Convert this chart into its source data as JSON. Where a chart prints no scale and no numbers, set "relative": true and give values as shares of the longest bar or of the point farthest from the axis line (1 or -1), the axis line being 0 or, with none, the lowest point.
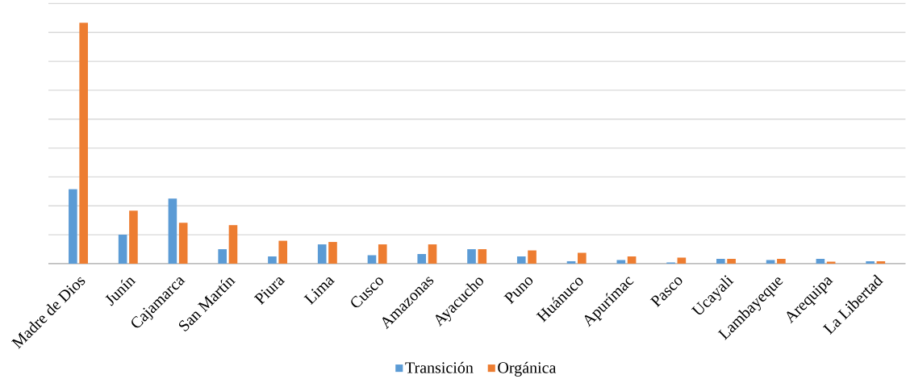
{
  "chart_data": {
    "type": "bar",
    "relative": true,
    "grid": "y",
    "legend": "bottom",
    "categories": [
      "Madre de Dios",
      "Junín",
      "Cajamarca",
      "San Martín",
      "Piura",
      "Lima",
      "Cusco",
      "Amazonas",
      "Ayacucho",
      "Puno",
      "Huánuco",
      "Apurímac",
      "Pasco",
      "Ucayali",
      "Lambayeque",
      "Arequipa",
      "La Libertad"
    ],
    "series": [
      {
        "name": "Transición",
        "color": "#5b9bd5",
        "values": [
          0.31,
          0.12,
          0.27,
          0.06,
          0.03,
          0.08,
          0.035,
          0.04,
          0.06,
          0.03,
          0.01,
          0.015,
          0.005,
          0.02,
          0.015,
          0.02,
          0.01
        ]
      },
      {
        "name": "Orgánica",
        "color": "#ed7d31",
        "values": [
          1,
          0.22,
          0.17,
          0.16,
          0.095,
          0.09,
          0.08,
          0.08,
          0.06,
          0.055,
          0.045,
          0.03,
          0.025,
          0.02,
          0.02,
          0.008,
          0.01
        ]
      }
    ]
  }
}
